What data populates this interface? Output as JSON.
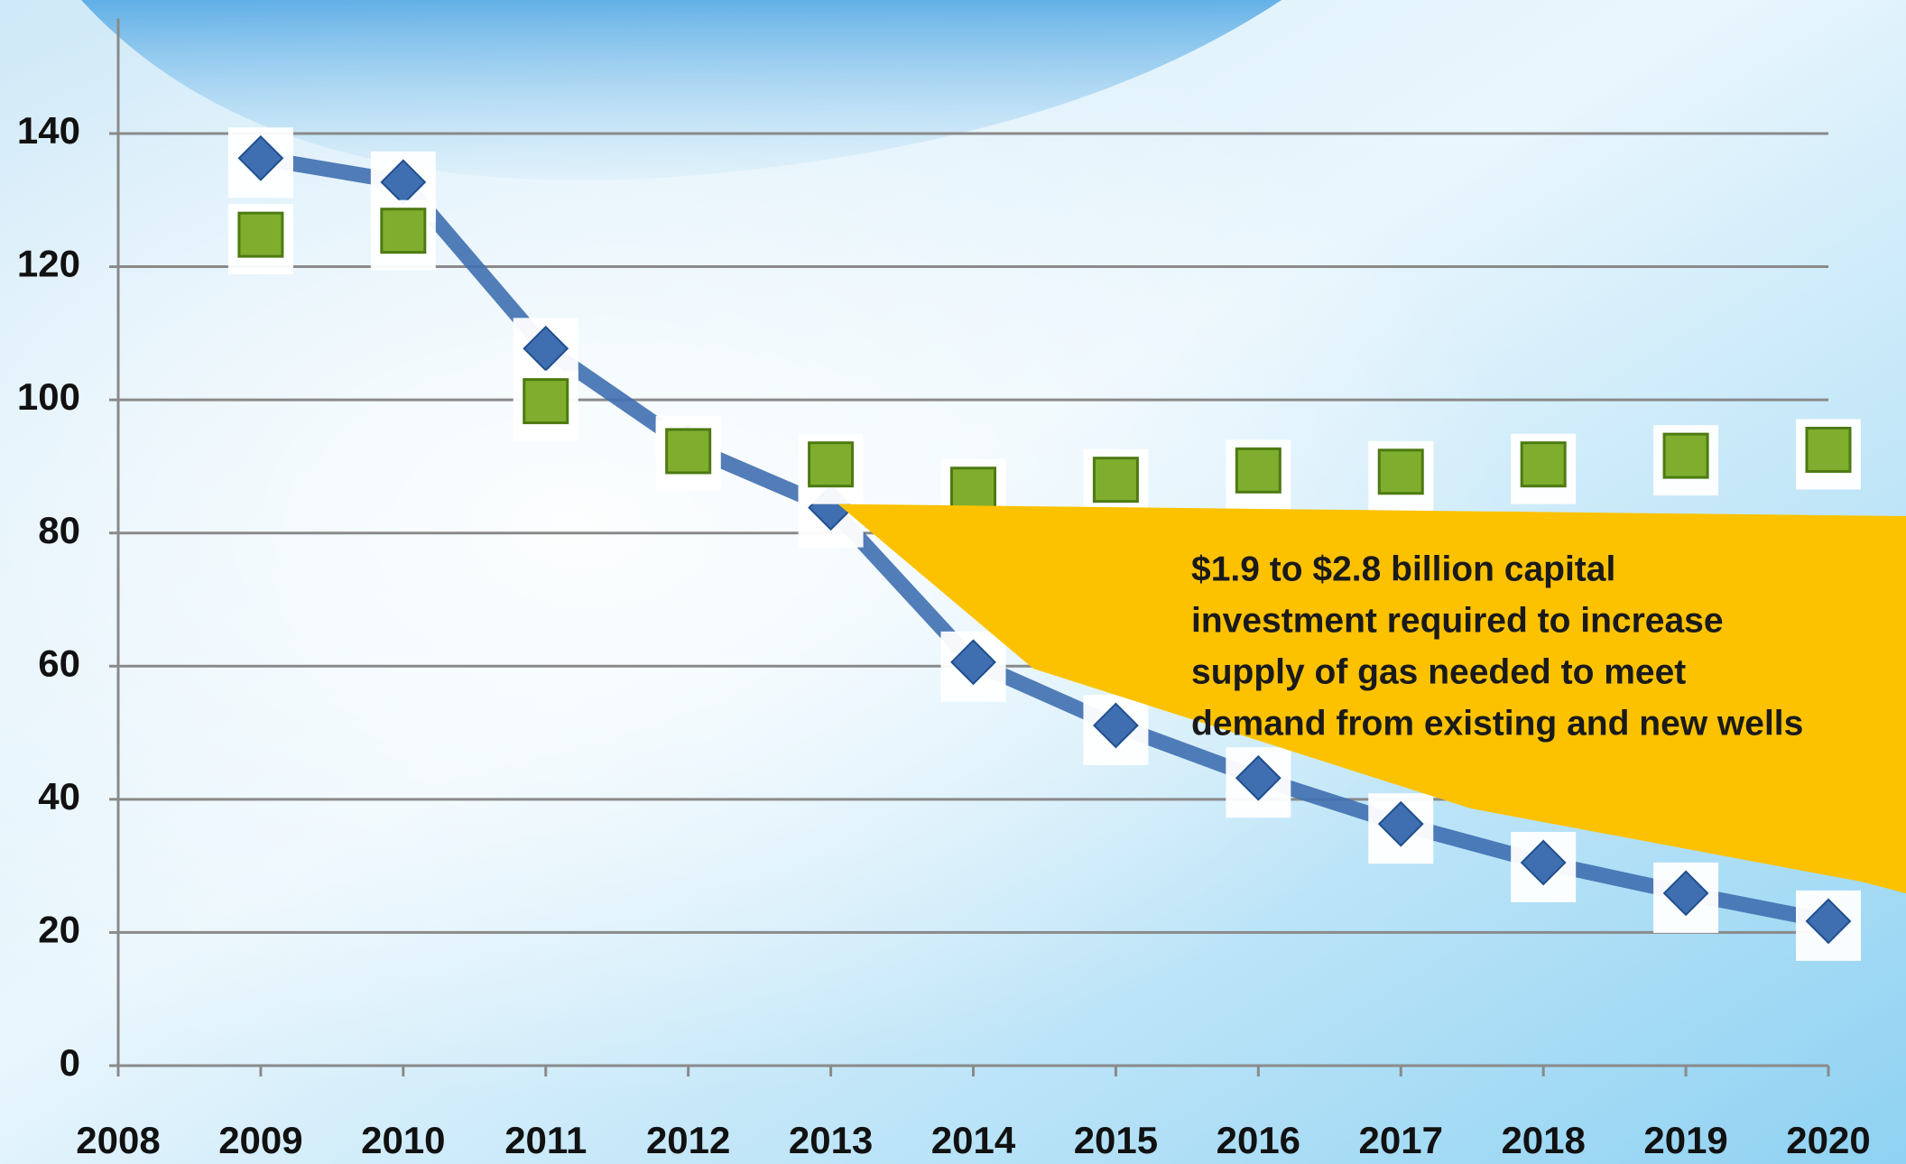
{
  "chart_data": {
    "type": "line",
    "x": [
      2009,
      2010,
      2011,
      2012,
      2013,
      2014,
      2015,
      2016,
      2017,
      2018,
      2019,
      2020
    ],
    "series": [
      {
        "color": "#3f6fb0",
        "marker": "diamond",
        "line": true,
        "values": [
          136.3,
          132.7,
          107.7,
          93,
          83.8,
          60.6,
          51.1,
          43.2,
          36.3,
          30.5,
          25.9,
          21.7
        ]
      },
      {
        "color": "#7fae2e",
        "marker": "square",
        "line": false,
        "values": [
          124.8,
          125.4,
          99.8,
          92.3,
          90.3,
          86.5,
          88,
          89.4,
          89.2,
          90.3,
          91.6,
          92.5
        ]
      }
    ],
    "xlim": [
      2008,
      2020
    ],
    "xticks": [
      2008,
      2009,
      2010,
      2011,
      2012,
      2013,
      2014,
      2015,
      2016,
      2017,
      2018,
      2019,
      2020
    ],
    "ylim": [
      0,
      160
    ],
    "yticks": [
      0,
      20,
      40,
      60,
      80,
      100,
      120,
      140
    ],
    "grid": true,
    "annotation": {
      "x": 2013,
      "y": 83.8,
      "lines": [
        "$1.9 to $2.8 billion capital",
        "investment required to increase",
        "supply of gas needed to meet",
        "demand from existing and new wells"
      ]
    }
  }
}
